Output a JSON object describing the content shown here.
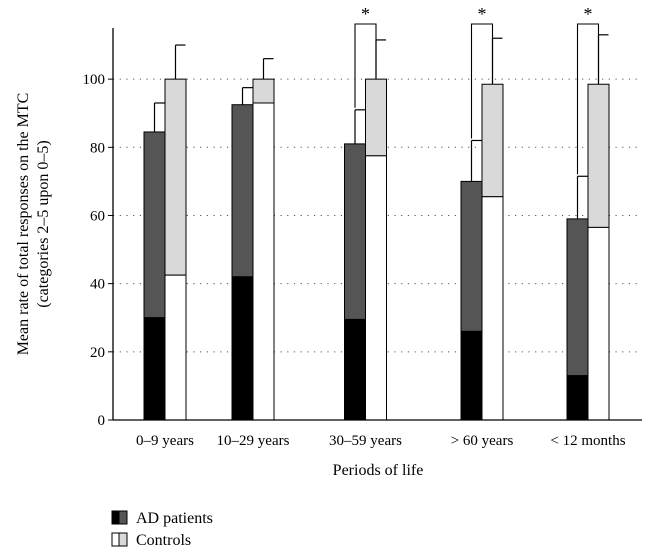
{
  "chart_data": {
    "type": "bar",
    "subtype": "grouped-stacked",
    "xlabel": "Periods of life",
    "ylabel_lines": [
      "Mean rate of total responses on the MTC",
      "(categories 2–5 upon 0–5)"
    ],
    "ylim": [
      0,
      115
    ],
    "yticks": [
      0,
      20,
      40,
      60,
      80,
      100
    ],
    "grid": "horizontal-dotted",
    "legend_position": "bottom-left",
    "categories": [
      "0–9 years",
      "10–29 years",
      "30–59 years",
      "> 60 years",
      "< 12 months"
    ],
    "series": [
      {
        "name": "AD patients",
        "lower_color": "#000000",
        "upper_color": "#555555",
        "lower_values": [
          30,
          42,
          29.5,
          26,
          13
        ],
        "total_values": [
          84.5,
          92.5,
          81,
          70,
          59
        ],
        "error_upper": [
          93,
          97.5,
          91,
          82,
          71.5
        ]
      },
      {
        "name": "Controls",
        "lower_color": "#ffffff",
        "upper_color": "#d9d9d9",
        "lower_values": [
          42.5,
          93,
          77.5,
          65.5,
          56.5
        ],
        "total_values": [
          100,
          100,
          100,
          98.5,
          98.5
        ],
        "error_upper": [
          110,
          106,
          111.5,
          112,
          113
        ]
      }
    ],
    "significance": [
      {
        "category_index": 2,
        "label": "*"
      },
      {
        "category_index": 3,
        "label": "*"
      },
      {
        "category_index": 4,
        "label": "*"
      }
    ]
  }
}
